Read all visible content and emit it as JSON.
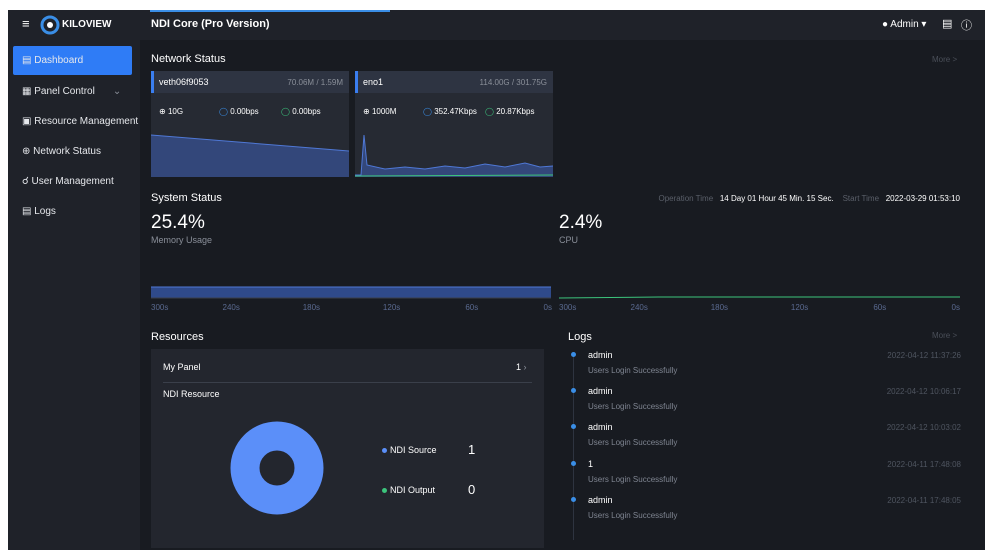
{
  "header": {
    "logo": "KILOVIEW",
    "title": "NDI Core (Pro Version)",
    "user": "Admin"
  },
  "sidebar": {
    "items": [
      "Dashboard",
      "Panel Control",
      "Resource Management",
      "Network Status",
      "User Management",
      "Logs"
    ]
  },
  "network_status": {
    "title": "Network Status",
    "more": "More >",
    "cards": [
      {
        "name": "veth06f9053",
        "traffic": "70.06M / 1.59M",
        "speed": "10G",
        "up": "0.00bps",
        "down": "0.00bps"
      },
      {
        "name": "eno1",
        "traffic": "114.00G / 301.75G",
        "speed": "1000M",
        "up": "352.47Kbps",
        "down": "20.87Kbps"
      }
    ]
  },
  "system_status": {
    "title": "System Status",
    "operation_time_label": "Operation Time",
    "operation_time": "14 Day 01 Hour 45 Min. 15 Sec.",
    "start_time_label": "Start Time",
    "start_time": "2022-03-29 01:53:10",
    "memory": {
      "value": "25.4%",
      "label": "Memory Usage"
    },
    "cpu": {
      "value": "2.4%",
      "label": "CPU"
    },
    "axis_labels": [
      "300s",
      "240s",
      "180s",
      "120s",
      "60s",
      "0s"
    ]
  },
  "resources": {
    "title": "Resources",
    "my_panel": {
      "label": "My Panel",
      "count": "1"
    },
    "ndi_resource": {
      "title": "NDI Resource",
      "legend": [
        {
          "name": "NDI Source",
          "value": 1,
          "color": "#5b8ff9"
        },
        {
          "name": "NDI Output",
          "value": 0,
          "color": "#3cc47c"
        }
      ]
    }
  },
  "logs": {
    "title": "Logs",
    "more": "More >",
    "entries": [
      {
        "user": "admin",
        "message": "Users Login Successfully",
        "time": "2022-04-12 11:37:26"
      },
      {
        "user": "admin",
        "message": "Users Login Successfully",
        "time": "2022-04-12 10:06:17"
      },
      {
        "user": "admin",
        "message": "Users Login Successfully",
        "time": "2022-04-12 10:03:02"
      },
      {
        "user": "1",
        "message": "Users Login Successfully",
        "time": "2022-04-11 17:48:08"
      },
      {
        "user": "admin",
        "message": "Users Login Successfully",
        "time": "2022-04-11 17:48:05"
      }
    ]
  }
}
